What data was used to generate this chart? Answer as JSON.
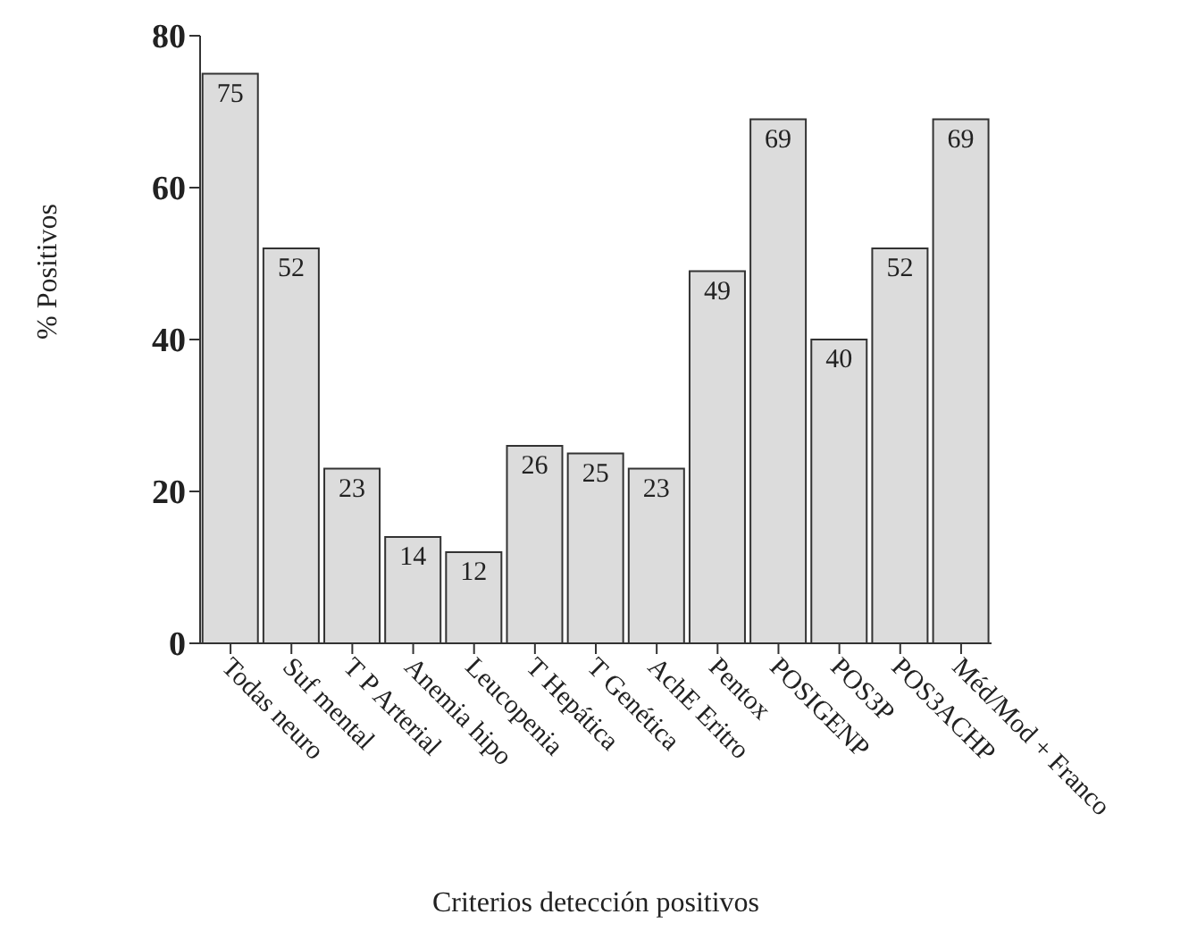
{
  "chart_data": {
    "type": "bar",
    "xlabel": "Criterios detección positivos",
    "ylabel": "% Positivos",
    "categories": [
      "Todas neuro",
      "Suf mental",
      "T P Arterial",
      "Anemia hipo",
      "Leucopenia",
      "T Hepática",
      "T Genética",
      "AchE Eritro",
      "Pentox",
      "POSIGENP",
      "POS3P",
      "POS3ACHP",
      "Méd/Mod + Franco"
    ],
    "values": [
      75,
      52,
      23,
      14,
      12,
      26,
      25,
      23,
      49,
      69,
      40,
      52,
      69
    ],
    "color": "#dcdcdc",
    "ylim": [
      0,
      80
    ],
    "yticks": [
      0,
      20,
      40,
      60,
      80
    ],
    "data_labels": true,
    "grid": false,
    "legend": false
  }
}
